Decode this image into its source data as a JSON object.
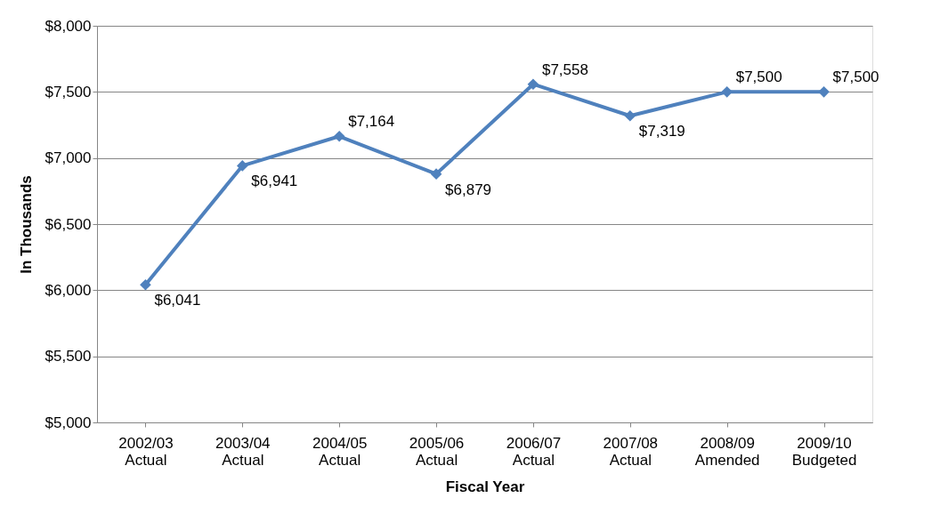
{
  "chart_data": {
    "type": "line",
    "xlabel": "Fiscal Year",
    "ylabel": "In Thousands",
    "categories": [
      "2002/03 Actual",
      "2003/04 Actual",
      "2004/05 Actual",
      "2005/06 Actual",
      "2006/07 Actual",
      "2007/08 Actual",
      "2008/09 Amended",
      "2009/10 Budgeted"
    ],
    "series": [
      {
        "color": "#4f81bd",
        "values": [
          6041,
          6941,
          7164,
          6879,
          7558,
          7319,
          7500,
          7500
        ]
      }
    ],
    "value_labels": [
      "$6,041",
      "$6,941",
      "$7,164",
      "$6,879",
      "$7,558",
      "$7,319",
      "$7,500",
      "$7,500"
    ],
    "ylim": [
      5000,
      8000
    ],
    "yticks": [
      {
        "value": 5000,
        "label": "$5,000"
      },
      {
        "value": 5500,
        "label": "$5,500"
      },
      {
        "value": 6000,
        "label": "$6,000"
      },
      {
        "value": 6500,
        "label": "$6,500"
      },
      {
        "value": 7000,
        "label": "$7,000"
      },
      {
        "value": 7500,
        "label": "$7,500"
      },
      {
        "value": 8000,
        "label": "$8,000"
      }
    ],
    "grid": "y",
    "marker": "diamond",
    "line_style": "solid"
  }
}
